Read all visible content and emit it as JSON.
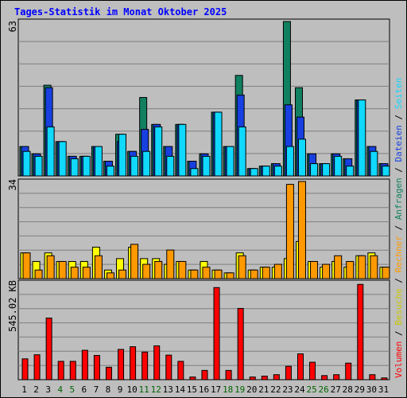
{
  "chart_data": [
    {
      "type": "bar",
      "title": "Tages-Statistik im Monat Oktober 2025",
      "ymax_label": "63",
      "ylim": [
        0,
        63
      ],
      "categories": [
        "1",
        "2",
        "3",
        "4",
        "5",
        "6",
        "7",
        "8",
        "9",
        "10",
        "11",
        "12",
        "13",
        "14",
        "15",
        "16",
        "17",
        "18",
        "19",
        "20",
        "21",
        "22",
        "23",
        "24",
        "25",
        "26",
        "27",
        "28",
        "29",
        "30",
        "31"
      ],
      "weekend_days": [
        "4",
        "5",
        "11",
        "12",
        "18",
        "19",
        "25",
        "26"
      ],
      "series": [
        {
          "name": "Anfragen",
          "color": "#108060",
          "values": [
            12,
            9,
            37,
            14,
            8,
            8,
            12,
            6,
            17,
            10,
            32,
            21,
            12,
            21,
            6,
            9,
            26,
            12,
            41,
            3,
            4,
            5,
            63,
            36,
            9,
            5,
            9,
            7,
            31,
            12,
            5
          ]
        },
        {
          "name": "Dateien",
          "color": "#1840e0",
          "values": [
            12,
            9,
            36,
            14,
            8,
            8,
            12,
            6,
            14,
            10,
            19,
            21,
            12,
            21,
            6,
            9,
            26,
            12,
            33,
            3,
            4,
            5,
            29,
            24,
            9,
            5,
            9,
            7,
            31,
            12,
            5
          ]
        },
        {
          "name": "Seiten",
          "color": "#10d8ff",
          "values": [
            10,
            8,
            20,
            14,
            7,
            8,
            12,
            4,
            17,
            8,
            10,
            20,
            8,
            21,
            3,
            8,
            26,
            12,
            20,
            3,
            4,
            4,
            12,
            15,
            5,
            5,
            8,
            4,
            31,
            10,
            4
          ]
        }
      ]
    },
    {
      "type": "bar",
      "ymax_label": "34",
      "ylim": [
        0,
        34
      ],
      "series": [
        {
          "name": "Besuche",
          "color": "#ffff00",
          "values": [
            9,
            6,
            9,
            6,
            6,
            6,
            11,
            3,
            7,
            11,
            7,
            7,
            5,
            6,
            3,
            6,
            3,
            2,
            9,
            3,
            4,
            4,
            7,
            13,
            6,
            4,
            6,
            4,
            8,
            9,
            4
          ]
        },
        {
          "name": "Rechner",
          "color": "#ff9900",
          "values": [
            9,
            3,
            8,
            6,
            4,
            4,
            8,
            2,
            3,
            12,
            5,
            6,
            10,
            6,
            3,
            4,
            3,
            2,
            8,
            3,
            4,
            5,
            33,
            34,
            6,
            5,
            8,
            6,
            8,
            8,
            4
          ]
        }
      ]
    },
    {
      "type": "bar",
      "ymax_label": "545.02 KB",
      "ylim": [
        0,
        545.02
      ],
      "series": [
        {
          "name": "Volumen",
          "color": "#ff0000",
          "values": [
            117,
            140,
            346,
            103,
            103,
            165,
            136,
            70,
            170,
            185,
            155,
            190,
            138,
            103,
            15,
            52,
            517,
            52,
            400,
            15,
            20,
            28,
            75,
            145,
            98,
            23,
            28,
            93,
            535,
            28,
            10
          ]
        }
      ]
    }
  ],
  "legend_separator": " / "
}
